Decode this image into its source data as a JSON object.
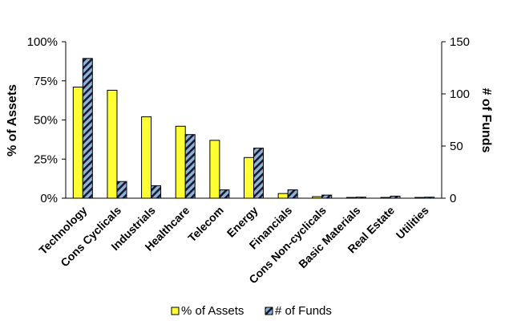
{
  "chart_data": {
    "type": "bar",
    "categories": [
      "Technology",
      "Cons Cyclicals",
      "Industrials",
      "Healthcare",
      "Telecom",
      "Energy",
      "Financials",
      "Cons Non-cyclicals",
      "Basic Materials",
      "Real Estate",
      "Utilities"
    ],
    "series": [
      {
        "name": "% of Assets",
        "axis": "left",
        "color": "#ffff33",
        "pattern": "solid",
        "values": [
          71,
          69,
          52,
          46,
          37,
          26,
          3,
          1,
          0.5,
          0.5,
          0.5
        ]
      },
      {
        "name": "# of Funds",
        "axis": "right",
        "color": "#8fb3d9",
        "pattern": "diagonal-stripes-dark",
        "values": [
          134,
          16,
          12,
          61,
          8,
          48,
          8,
          3,
          1,
          2,
          1
        ]
      }
    ],
    "ylabel": "% of Assets",
    "ylabel_right": "# of Funds",
    "ylim": [
      0,
      100
    ],
    "ylim_right": [
      0,
      150
    ],
    "yticks": [
      "0%",
      "25%",
      "50%",
      "75%",
      "100%"
    ],
    "yticks_right": [
      "0",
      "50",
      "100",
      "150"
    ],
    "legend_position": "bottom",
    "grid": false
  }
}
